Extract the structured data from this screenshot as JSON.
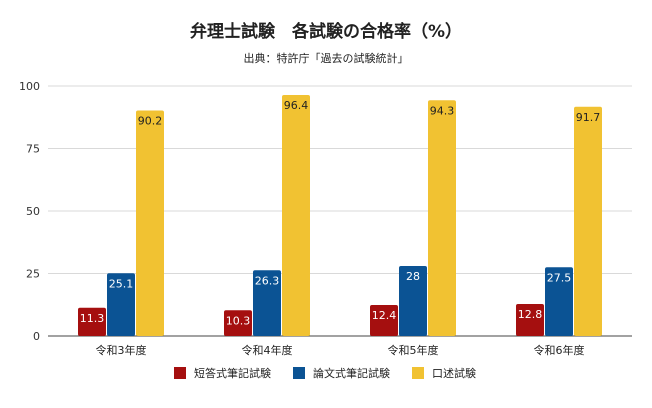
{
  "chart_data": {
    "type": "bar",
    "title": "弁理士試験　各試験の合格率（%）",
    "subtitle": "出典：特許庁「過去の試験統計」",
    "categories": [
      "令和3年度",
      "令和4年度",
      "令和5年度",
      "令和6年度"
    ],
    "series": [
      {
        "name": "短答式筆記試験",
        "color": "#a50f0f",
        "values": [
          11.3,
          10.3,
          12.4,
          12.8
        ]
      },
      {
        "name": "論文式筆記試験",
        "color": "#0b5394",
        "values": [
          25.1,
          26.3,
          28,
          27.5
        ]
      },
      {
        "name": "口述試験",
        "color": "#f1c232",
        "values": [
          90.2,
          96.4,
          94.3,
          91.7
        ]
      }
    ],
    "ylim": [
      0,
      100
    ],
    "yticks": [
      0,
      25,
      50,
      75,
      100
    ],
    "grid": true,
    "legend_position": "bottom"
  }
}
